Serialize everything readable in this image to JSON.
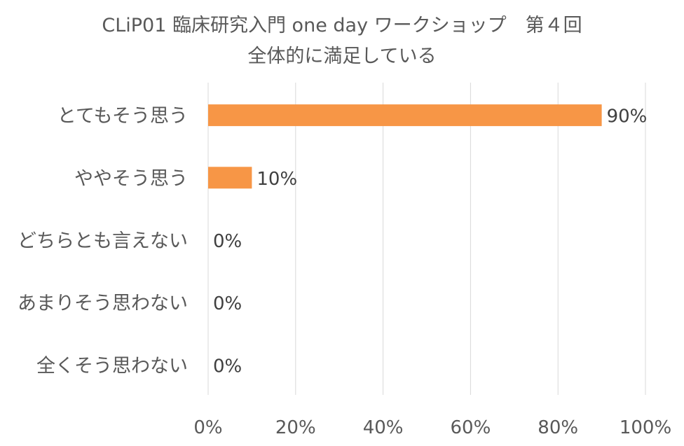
{
  "chart_data": {
    "type": "bar",
    "orientation": "horizontal",
    "title": "CLiP01 臨床研究入門 one day ワークショップ　第４回",
    "subtitle": "全体的に満足している",
    "categories": [
      "とてもそう思う",
      "ややそう思う",
      "どちらとも言えない",
      "あまりそう思わない",
      "全くそう思わない"
    ],
    "values": [
      90,
      10,
      0,
      0,
      0
    ],
    "data_labels": [
      "90%",
      "10%",
      "0%",
      "0%",
      "0%"
    ],
    "x_ticks": [
      "0%",
      "20%",
      "40%",
      "60%",
      "80%",
      "100%"
    ],
    "xlim": [
      0,
      100
    ],
    "grid": "vertical",
    "legend": "none",
    "bar_color": "#F79646",
    "grid_color": "#D9D9D9"
  }
}
